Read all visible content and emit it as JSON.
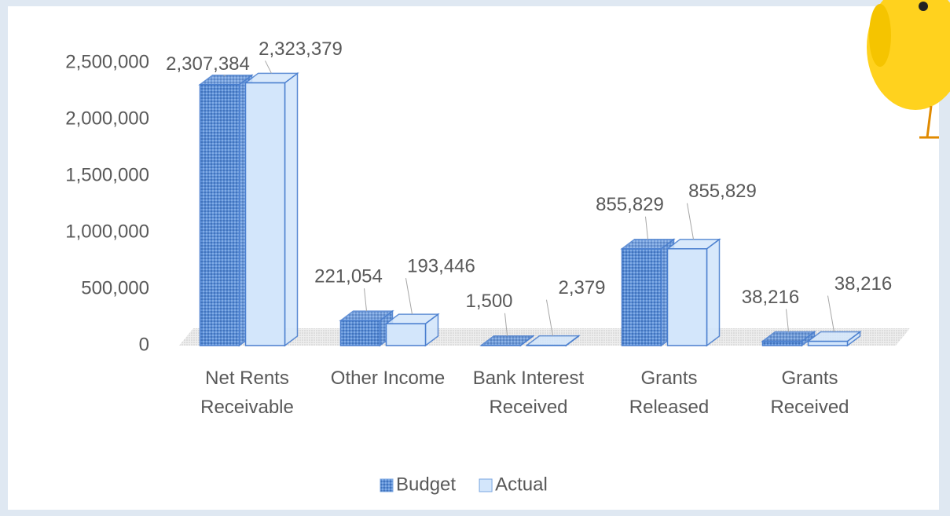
{
  "chart_data": {
    "type": "bar3d",
    "categories": [
      "Net Rents Receivable",
      "Other Income",
      "Bank Interest Received",
      "Grants Released",
      "Grants Received"
    ],
    "series": [
      {
        "name": "Budget",
        "color": "#5b8ed6",
        "values": [
          2307384,
          221054,
          1500,
          855829,
          38216
        ],
        "value_labels": [
          "2,307,384",
          "221,054",
          "1,500",
          "855,829",
          "38,216"
        ]
      },
      {
        "name": "Actual",
        "color": "#d3e6fb",
        "values": [
          2323379,
          193446,
          2379,
          855829,
          38216
        ],
        "value_labels": [
          "2,323,379",
          "193,446",
          "2,379",
          "855,829",
          "38,216"
        ]
      }
    ],
    "ylim": [
      0,
      2500000
    ],
    "yticks": [
      0,
      {
        "value": 500000,
        "label": "500,000"
      },
      {
        "value": 1000000,
        "label": "1,000,000"
      },
      {
        "value": 1500000,
        "label": "1,500,000"
      },
      {
        "value": 2000000,
        "label": "2,000,000"
      },
      {
        "value": 2500000,
        "label": "2,500,000"
      }
    ],
    "grid": false
  }
}
